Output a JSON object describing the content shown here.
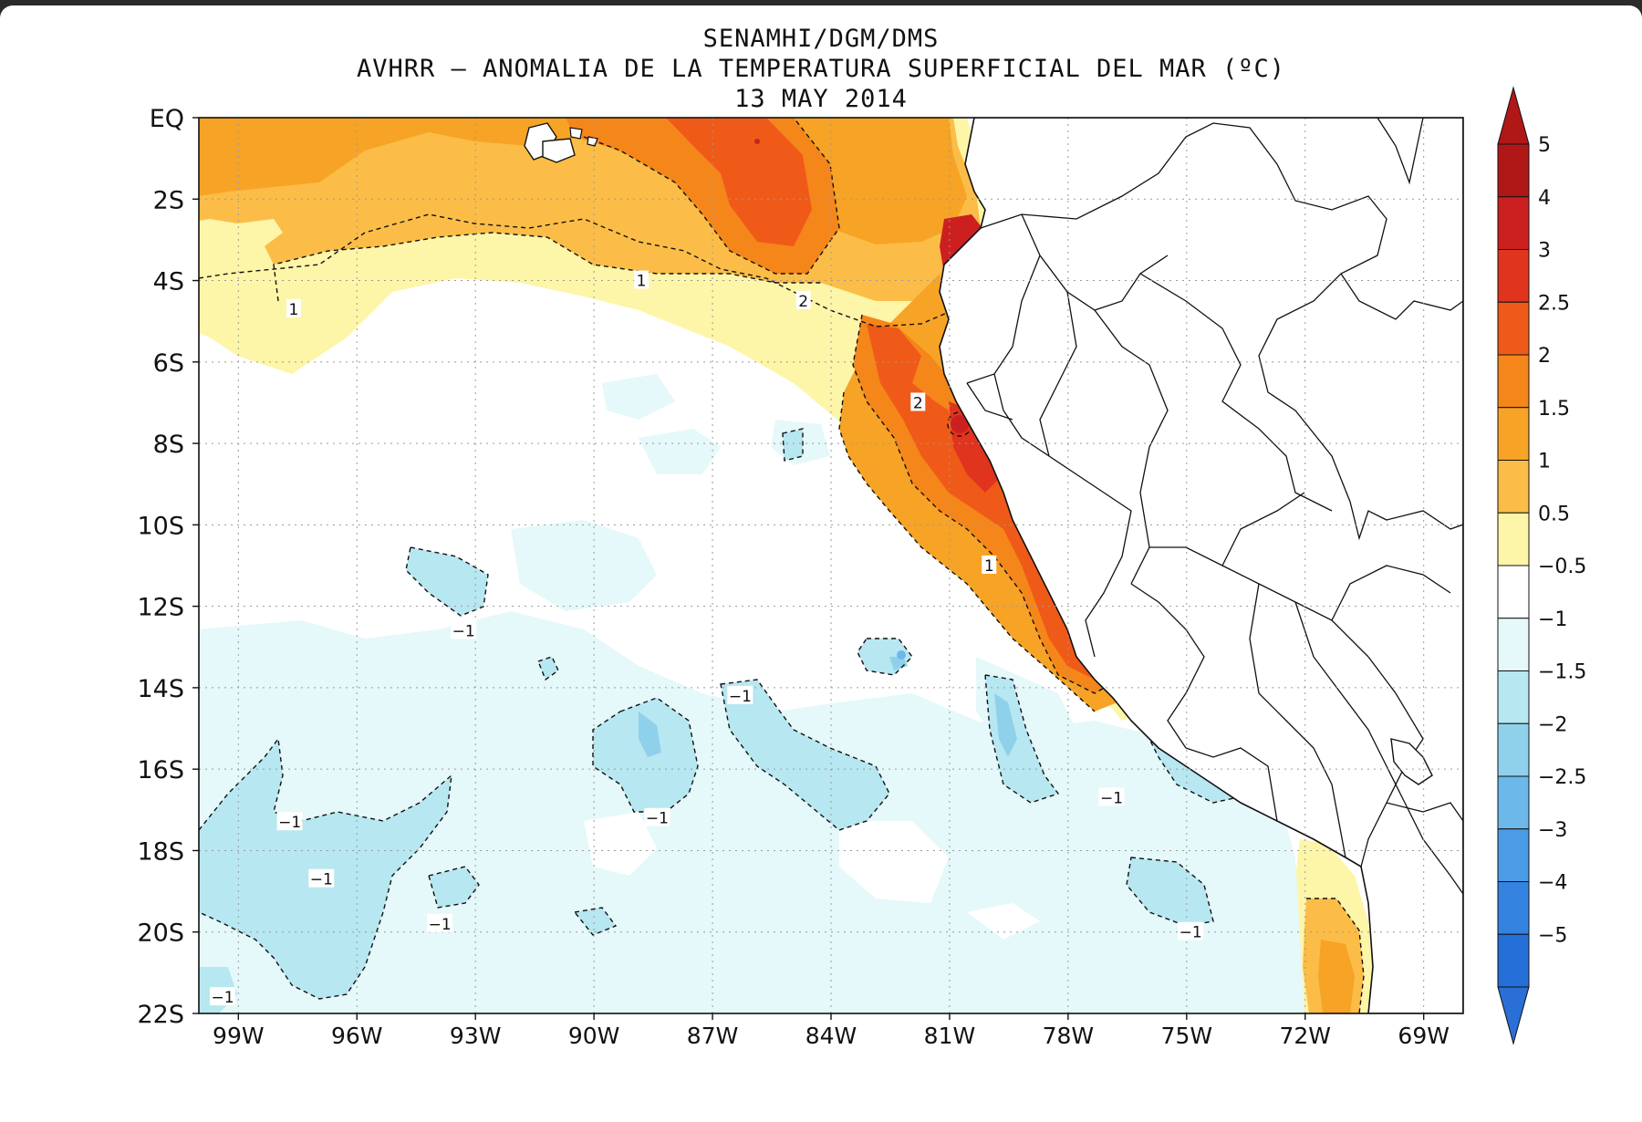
{
  "titles": {
    "line1": "SENAMHI/DGM/DMS",
    "line2": "AVHRR – ANOMALIA DE LA TEMPERATURA SUPERFICIAL DEL MAR (ºC)",
    "line3": "13 MAY 2014"
  },
  "map": {
    "lon_range": [
      -100,
      -68
    ],
    "lat_range": [
      -22,
      0
    ],
    "lat_ticks": [
      {
        "v": 0,
        "label": "EQ"
      },
      {
        "v": -2,
        "label": "2S"
      },
      {
        "v": -4,
        "label": "4S"
      },
      {
        "v": -6,
        "label": "6S"
      },
      {
        "v": -8,
        "label": "8S"
      },
      {
        "v": -10,
        "label": "10S"
      },
      {
        "v": -12,
        "label": "12S"
      },
      {
        "v": -14,
        "label": "14S"
      },
      {
        "v": -16,
        "label": "16S"
      },
      {
        "v": -18,
        "label": "18S"
      },
      {
        "v": -20,
        "label": "20S"
      },
      {
        "v": -22,
        "label": "22S"
      }
    ],
    "lon_ticks": [
      {
        "v": -99,
        "label": "99W"
      },
      {
        "v": -96,
        "label": "96W"
      },
      {
        "v": -93,
        "label": "93W"
      },
      {
        "v": -90,
        "label": "90W"
      },
      {
        "v": -87,
        "label": "87W"
      },
      {
        "v": -84,
        "label": "84W"
      },
      {
        "v": -81,
        "label": "81W"
      },
      {
        "v": -78,
        "label": "78W"
      },
      {
        "v": -75,
        "label": "75W"
      },
      {
        "v": -72,
        "label": "72W"
      },
      {
        "v": -69,
        "label": "69W"
      }
    ],
    "grid": "dotted",
    "contour_labels": [
      {
        "text": "1",
        "lon": -97.6,
        "lat": -4.7
      },
      {
        "text": "1",
        "lon": -88.8,
        "lat": -4.0
      },
      {
        "text": "2",
        "lon": -84.7,
        "lat": -4.5
      },
      {
        "text": "2",
        "lon": -81.8,
        "lat": -7.0
      },
      {
        "text": "1",
        "lon": -80.0,
        "lat": -11.0
      },
      {
        "text": "−1",
        "lon": -93.3,
        "lat": -12.6
      },
      {
        "text": "−1",
        "lon": -86.3,
        "lat": -14.2
      },
      {
        "text": "−1",
        "lon": -88.4,
        "lat": -17.2
      },
      {
        "text": "−1",
        "lon": -97.7,
        "lat": -17.3
      },
      {
        "text": "−1",
        "lon": -96.9,
        "lat": -18.7
      },
      {
        "text": "−1",
        "lon": -93.9,
        "lat": -19.8
      },
      {
        "text": "−1",
        "lon": -99.4,
        "lat": -21.6
      },
      {
        "text": "−1",
        "lon": -76.9,
        "lat": -16.7
      },
      {
        "text": "−1",
        "lon": -74.9,
        "lat": -20.0
      }
    ]
  },
  "colorbar": {
    "levels": [
      {
        "label": "5",
        "color": "#b01818"
      },
      {
        "label": "4",
        "color": "#cc2020"
      },
      {
        "label": "3",
        "color": "#e0341e"
      },
      {
        "label": "2.5",
        "color": "#f05a18"
      },
      {
        "label": "2",
        "color": "#f5861a"
      },
      {
        "label": "1.5",
        "color": "#f7a326"
      },
      {
        "label": "1",
        "color": "#fbbd47"
      },
      {
        "label": "0.5",
        "color": "#fdf5a8"
      },
      {
        "label": "−0.5",
        "color": "#ffffff"
      },
      {
        "label": "−1",
        "color": "#e5f8fa"
      },
      {
        "label": "−1.5",
        "color": "#b7e7f0"
      },
      {
        "label": "−2",
        "color": "#8fd1eb"
      },
      {
        "label": "−2.5",
        "color": "#6cb8ea"
      },
      {
        "label": "−3",
        "color": "#4b9be6"
      },
      {
        "label": "−4",
        "color": "#3583e0"
      },
      {
        "label": "−5",
        "color": "#256fd8"
      }
    ],
    "below_color": "#2a6fd6"
  }
}
